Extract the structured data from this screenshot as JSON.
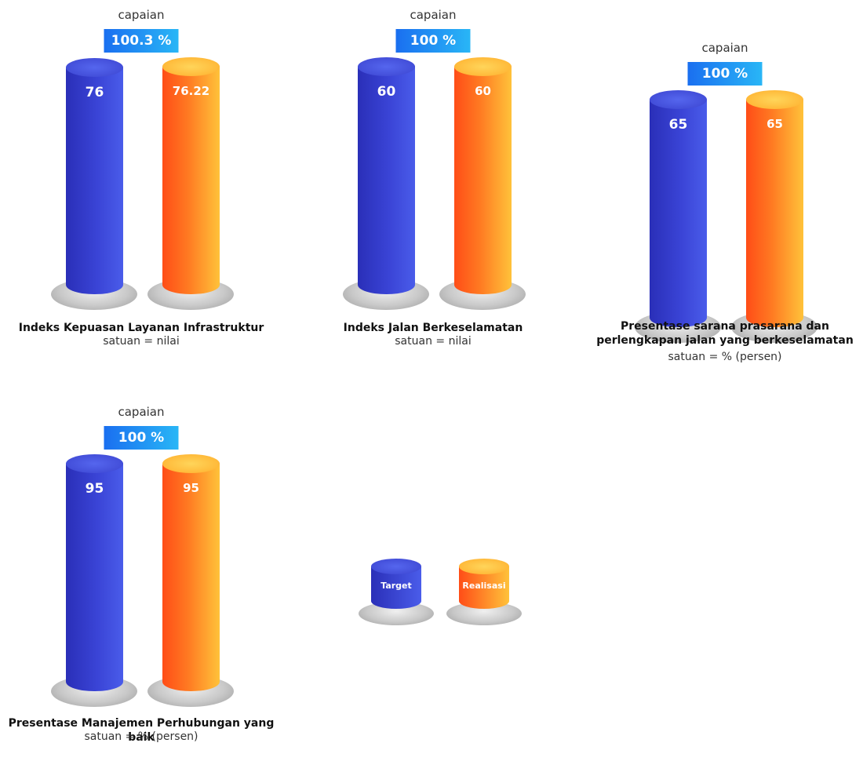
{
  "chart_data": [
    {
      "type": "bar",
      "title": "Indeks Kepuasan Layanan Infrastruktur",
      "unit": "satuan = nilai",
      "capaian_label": "capaian",
      "capaian": "100.3 %",
      "categories": [
        "Target",
        "Realisasi"
      ],
      "values": [
        76,
        76.22
      ],
      "labels": [
        "76",
        "76.22"
      ]
    },
    {
      "type": "bar",
      "title": "Indeks Jalan Berkeselamatan",
      "unit": "satuan = nilai",
      "capaian_label": "capaian",
      "capaian": "100 %",
      "categories": [
        "Target",
        "Realisasi"
      ],
      "values": [
        60,
        60
      ],
      "labels": [
        "60",
        "60"
      ]
    },
    {
      "type": "bar",
      "title": "Presentase sarana prasarana dan perlengkapan jalan yang berkeselamatan",
      "unit": "satuan = % (persen)",
      "capaian_label": "capaian",
      "capaian": "100 %",
      "categories": [
        "Target",
        "Realisasi"
      ],
      "values": [
        65,
        65
      ],
      "labels": [
        "65",
        "65"
      ]
    },
    {
      "type": "bar",
      "title": "Presentase Manajemen Perhubungan yang baik",
      "unit": "satuan = % (persen)",
      "capaian_label": "capaian",
      "capaian": "100 %",
      "categories": [
        "Target",
        "Realisasi"
      ],
      "values": [
        95,
        95
      ],
      "labels": [
        "95",
        "95"
      ]
    }
  ],
  "legend": {
    "target": "Target",
    "realisasi": "Realisasi"
  }
}
